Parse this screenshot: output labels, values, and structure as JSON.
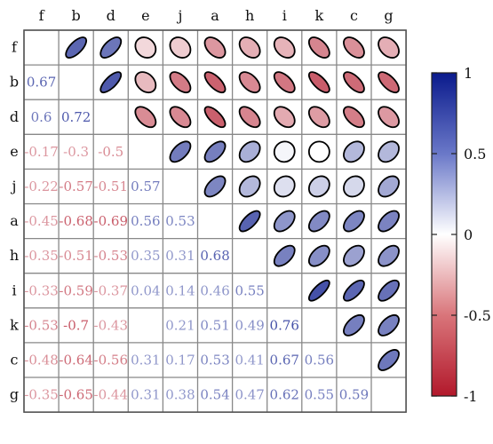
{
  "chart_data": {
    "type": "heatmap",
    "title": "",
    "variables": [
      "f",
      "b",
      "d",
      "e",
      "j",
      "a",
      "h",
      "i",
      "k",
      "c",
      "g"
    ],
    "matrix": [
      [
        null,
        0.67,
        0.6,
        -0.17,
        -0.22,
        -0.45,
        -0.35,
        -0.33,
        -0.53,
        -0.48,
        -0.35
      ],
      [
        0.67,
        null,
        0.72,
        -0.3,
        -0.57,
        -0.68,
        -0.51,
        -0.59,
        -0.7,
        -0.64,
        -0.65
      ],
      [
        0.6,
        0.72,
        null,
        -0.5,
        -0.51,
        -0.69,
        -0.53,
        -0.37,
        -0.43,
        -0.56,
        -0.44
      ],
      [
        -0.17,
        -0.3,
        -0.5,
        null,
        0.57,
        0.56,
        0.35,
        0.04,
        0.0,
        0.31,
        0.31
      ],
      [
        -0.22,
        -0.57,
        -0.51,
        0.57,
        null,
        0.53,
        0.31,
        0.14,
        0.21,
        0.17,
        0.38
      ],
      [
        -0.45,
        -0.68,
        -0.69,
        0.56,
        0.53,
        null,
        0.68,
        0.46,
        0.51,
        0.53,
        0.54
      ],
      [
        -0.35,
        -0.51,
        -0.53,
        0.35,
        0.31,
        0.68,
        null,
        0.55,
        0.49,
        0.41,
        0.47
      ],
      [
        -0.33,
        -0.59,
        -0.37,
        0.04,
        0.14,
        0.46,
        0.55,
        null,
        0.76,
        0.67,
        0.62
      ],
      [
        -0.53,
        -0.7,
        -0.43,
        0.0,
        0.21,
        0.51,
        0.49,
        0.76,
        null,
        0.56,
        0.55
      ],
      [
        -0.48,
        -0.64,
        -0.56,
        0.31,
        0.17,
        0.53,
        0.41,
        0.67,
        0.56,
        null,
        0.59
      ],
      [
        -0.35,
        -0.65,
        -0.44,
        0.31,
        0.38,
        0.54,
        0.47,
        0.62,
        0.55,
        0.59,
        null
      ]
    ],
    "lower_triangle": "numbers",
    "upper_triangle": "ellipses",
    "colorbar": {
      "range": [
        -1,
        1
      ],
      "ticks": [
        1,
        0.5,
        0,
        -0.5,
        -1
      ],
      "tick_labels": [
        "1",
        "0.5",
        "0",
        "-0.5",
        "-1"
      ],
      "colors": {
        "negative": "#b2182b",
        "zero": "#ffffff",
        "positive": "#0a1a8c"
      }
    }
  }
}
